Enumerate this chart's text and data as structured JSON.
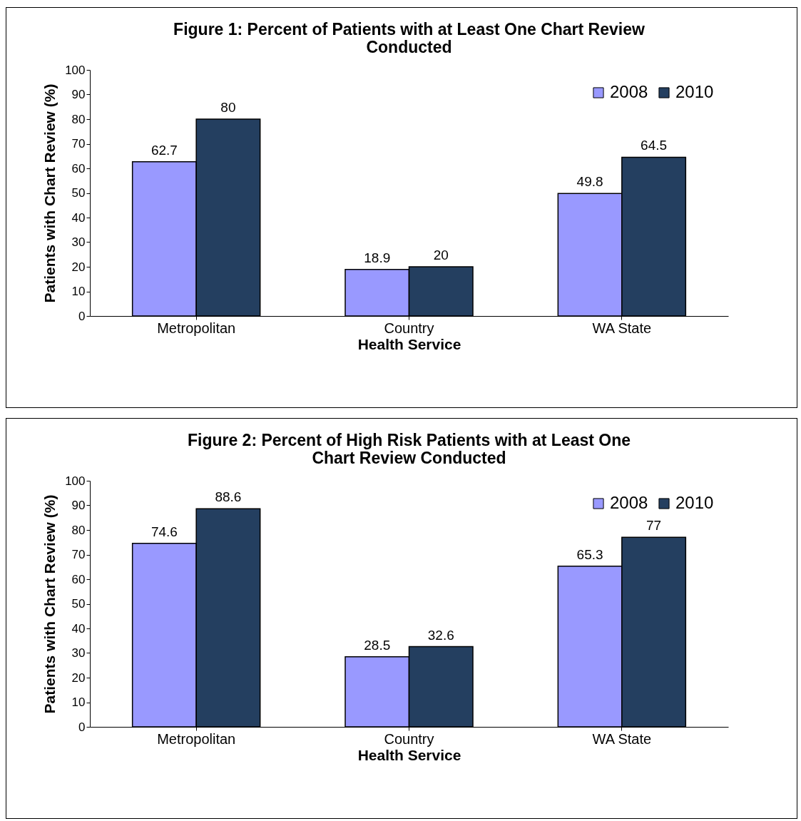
{
  "chart_data": [
    {
      "type": "bar",
      "title": "Figure 1: Percent of Patients with at Least One Chart Review Conducted",
      "xlabel": "Health Service",
      "ylabel": "Patients with Chart Review (%)",
      "categories": [
        "Metropolitan",
        "Country",
        "WA State"
      ],
      "series": [
        {
          "name": "2008",
          "color": "#9999ff",
          "values": [
            62.7,
            18.9,
            49.8
          ]
        },
        {
          "name": "2010",
          "color": "#243f60",
          "values": [
            80,
            20,
            64.5
          ]
        }
      ],
      "ylim": [
        0,
        100
      ],
      "yticks": [
        0,
        10,
        20,
        30,
        40,
        50,
        60,
        70,
        80,
        90,
        100
      ],
      "data_labels": true,
      "legend": "top right"
    },
    {
      "type": "bar",
      "title": "Figure 2: Percent of High Risk Patients with at Least One Chart Review Conducted",
      "xlabel": "Health Service",
      "ylabel": "Patients with Chart Review (%)",
      "categories": [
        "Metropolitan",
        "Country",
        "WA State"
      ],
      "series": [
        {
          "name": "2008",
          "color": "#9999ff",
          "values": [
            74.6,
            28.5,
            65.3
          ]
        },
        {
          "name": "2010",
          "color": "#243f60",
          "values": [
            88.6,
            32.6,
            77
          ]
        }
      ],
      "ylim": [
        0,
        100
      ],
      "yticks": [
        0,
        10,
        20,
        30,
        40,
        50,
        60,
        70,
        80,
        90,
        100
      ],
      "data_labels": true,
      "legend": "top right"
    }
  ]
}
